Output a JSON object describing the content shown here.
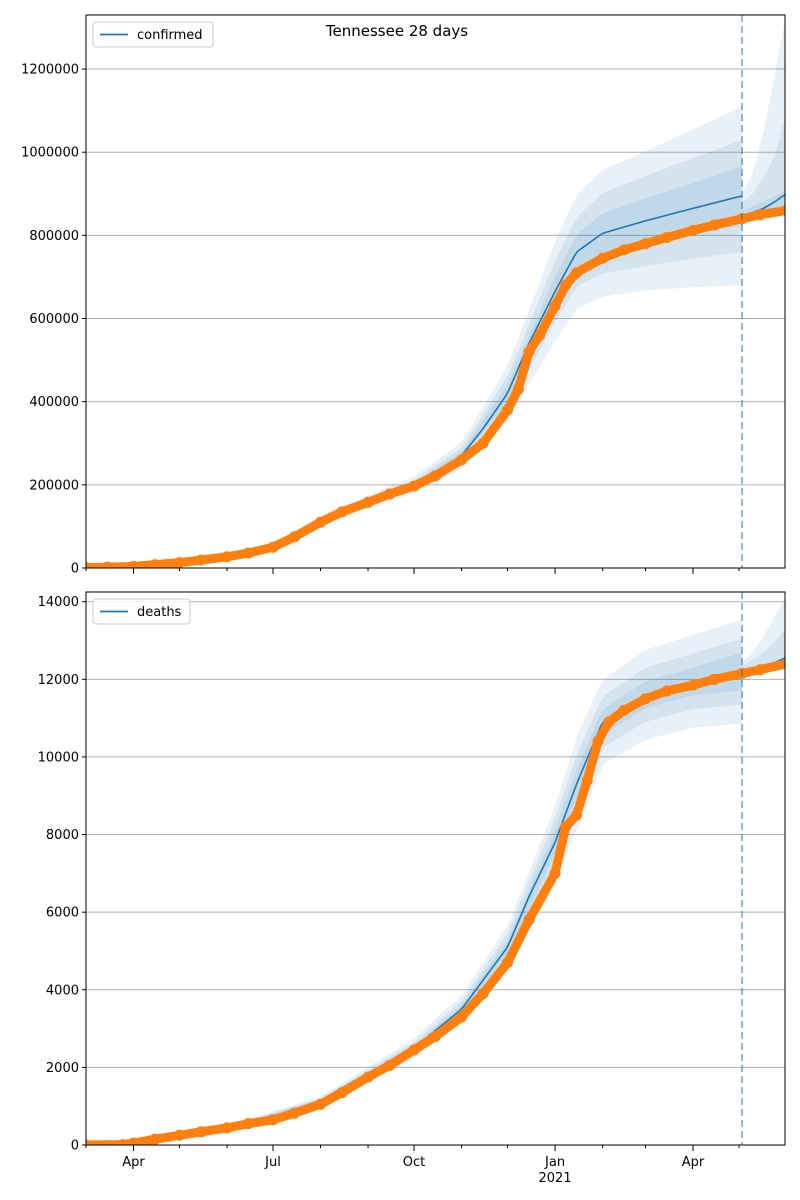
{
  "title": "Tennessee 28 days",
  "colors": {
    "model": "#1f77b4",
    "observed": "#ff7f0e",
    "band": "#1f77b4",
    "grid": "#b0b0b0",
    "forecast_line": "#1f77b4"
  },
  "chart_data": [
    {
      "type": "line",
      "legend": "confirmed",
      "legend_placement": "top-left",
      "grid": "y",
      "x_axis": {
        "type": "date",
        "range": [
          "2020-03-01",
          "2021-05-31"
        ]
      },
      "ylim": [
        0,
        1330000
      ],
      "yticks": [
        0,
        200000,
        400000,
        600000,
        800000,
        1000000,
        1200000
      ],
      "ytick_labels": [
        "0",
        "200000",
        "400000",
        "600000",
        "800000",
        "1000000",
        "1200000"
      ],
      "forecast_start": "2021-05-03",
      "model": {
        "x": [
          "2020-03-01",
          "2020-04-01",
          "2020-05-01",
          "2020-06-01",
          "2020-07-01",
          "2020-07-15",
          "2020-08-01",
          "2020-09-01",
          "2020-10-01",
          "2020-11-01",
          "2020-11-15",
          "2020-12-01",
          "2020-12-15",
          "2021-01-01",
          "2021-01-15",
          "2021-02-01",
          "2021-03-01",
          "2021-04-01",
          "2021-05-03",
          "2021-06-01"
        ],
        "y": [
          1000,
          3000,
          12000,
          28000,
          50000,
          75000,
          115000,
          160000,
          200000,
          270000,
          335000,
          420000,
          540000,
          665000,
          760000,
          805000,
          835000,
          865000,
          895000,
          898000
        ]
      },
      "bands": {
        "x": [
          "2020-03-01",
          "2020-06-01",
          "2020-07-01",
          "2020-08-01",
          "2020-09-01",
          "2020-10-01",
          "2020-11-01",
          "2020-12-01",
          "2021-01-01",
          "2021-01-15",
          "2021-02-01",
          "2021-03-01",
          "2021-04-01",
          "2021-05-03"
        ],
        "center": [
          1000,
          28000,
          50000,
          115000,
          160000,
          200000,
          270000,
          420000,
          665000,
          760000,
          805000,
          835000,
          865000,
          895000
        ],
        "outer": [
          0.08,
          0.1,
          0.1,
          0.1,
          0.1,
          0.1,
          0.12,
          0.16,
          0.18,
          0.18,
          0.19,
          0.2,
          0.22,
          0.24
        ],
        "mid": [
          0.05,
          0.06,
          0.06,
          0.06,
          0.06,
          0.06,
          0.07,
          0.1,
          0.11,
          0.11,
          0.12,
          0.13,
          0.14,
          0.15
        ],
        "inner": [
          0.025,
          0.03,
          0.03,
          0.03,
          0.03,
          0.03,
          0.035,
          0.05,
          0.055,
          0.055,
          0.06,
          0.065,
          0.07,
          0.08
        ]
      },
      "forecast_bands": {
        "x": [
          "2021-05-03",
          "2021-05-10",
          "2021-05-17",
          "2021-05-24",
          "2021-05-31"
        ],
        "lower": [
          840000,
          845000,
          850000,
          855000,
          860000
        ],
        "upper": [
          900000,
          950000,
          1050000,
          1180000,
          1320000
        ],
        "mid_upper": [
          880000,
          900000,
          940000,
          990000,
          1080000
        ],
        "inner_upper": [
          860000,
          870000,
          880000,
          895000,
          905000
        ],
        "center": [
          845000,
          855000,
          865000,
          880000,
          898000
        ]
      },
      "observed": {
        "x": [
          "2020-03-01",
          "2020-03-15",
          "2020-04-01",
          "2020-04-15",
          "2020-05-01",
          "2020-05-15",
          "2020-06-01",
          "2020-06-15",
          "2020-07-01",
          "2020-07-15",
          "2020-08-01",
          "2020-08-15",
          "2020-09-01",
          "2020-09-15",
          "2020-10-01",
          "2020-10-15",
          "2020-11-01",
          "2020-11-15",
          "2020-12-01",
          "2020-12-08",
          "2020-12-15",
          "2020-12-22",
          "2021-01-01",
          "2021-01-08",
          "2021-01-15",
          "2021-02-01",
          "2021-02-15",
          "2021-03-01",
          "2021-03-15",
          "2021-04-01",
          "2021-04-15",
          "2021-05-03",
          "2021-05-15",
          "2021-06-01"
        ],
        "y": [
          1000,
          2000,
          4000,
          8000,
          13000,
          19000,
          27000,
          36000,
          50000,
          75000,
          110000,
          135000,
          158000,
          178000,
          197000,
          222000,
          260000,
          300000,
          380000,
          430000,
          520000,
          560000,
          630000,
          680000,
          710000,
          745000,
          765000,
          780000,
          795000,
          812000,
          825000,
          840000,
          850000,
          860000
        ]
      }
    },
    {
      "type": "line",
      "legend": "deaths",
      "legend_placement": "top-left",
      "grid": "y",
      "x_axis": {
        "type": "date",
        "range": [
          "2020-03-01",
          "2021-05-31"
        ]
      },
      "ylim": [
        0,
        14250
      ],
      "yticks": [
        0,
        2000,
        4000,
        6000,
        8000,
        10000,
        12000,
        14000
      ],
      "ytick_labels": [
        "0",
        "2000",
        "4000",
        "6000",
        "8000",
        "10000",
        "12000",
        "14000"
      ],
      "forecast_start": "2021-05-03",
      "model": {
        "x": [
          "2020-03-01",
          "2020-04-01",
          "2020-05-01",
          "2020-06-01",
          "2020-07-01",
          "2020-08-01",
          "2020-09-01",
          "2020-10-01",
          "2020-11-01",
          "2020-12-01",
          "2020-12-15",
          "2021-01-01",
          "2021-01-15",
          "2021-02-01",
          "2021-03-01",
          "2021-04-01",
          "2021-05-03",
          "2021-06-01"
        ],
        "y": [
          0,
          60,
          250,
          450,
          700,
          1150,
          1850,
          2500,
          3500,
          5100,
          6400,
          7800,
          9300,
          10900,
          11600,
          11950,
          12200,
          12550
        ]
      },
      "bands": {
        "x": [
          "2020-03-01",
          "2020-06-01",
          "2020-08-01",
          "2020-10-01",
          "2020-11-01",
          "2020-12-01",
          "2021-01-01",
          "2021-01-15",
          "2021-02-01",
          "2021-03-01",
          "2021-04-01",
          "2021-05-03"
        ],
        "center": [
          0,
          450,
          1150,
          2500,
          3500,
          5100,
          7800,
          9300,
          10900,
          11600,
          11950,
          12200
        ],
        "outer": [
          0.05,
          0.08,
          0.09,
          0.1,
          0.1,
          0.11,
          0.12,
          0.13,
          0.1,
          0.1,
          0.1,
          0.11
        ],
        "mid": [
          0.03,
          0.05,
          0.05,
          0.06,
          0.06,
          0.07,
          0.08,
          0.08,
          0.06,
          0.06,
          0.06,
          0.07
        ],
        "inner": [
          0.015,
          0.025,
          0.025,
          0.03,
          0.03,
          0.035,
          0.04,
          0.04,
          0.03,
          0.03,
          0.03,
          0.04
        ]
      },
      "forecast_bands": {
        "x": [
          "2021-05-03",
          "2021-05-10",
          "2021-05-17",
          "2021-05-24",
          "2021-05-31"
        ],
        "lower": [
          12150,
          12200,
          12250,
          12300,
          12350
        ],
        "upper": [
          12450,
          12700,
          13100,
          13600,
          14100
        ],
        "mid_upper": [
          12350,
          12500,
          12700,
          12950,
          13300
        ],
        "inner_upper": [
          12250,
          12320,
          12400,
          12480,
          12560
        ],
        "center": [
          12200,
          12250,
          12320,
          12420,
          12550
        ]
      },
      "observed": {
        "x": [
          "2020-03-01",
          "2020-03-25",
          "2020-04-01",
          "2020-04-15",
          "2020-05-01",
          "2020-05-15",
          "2020-06-01",
          "2020-06-15",
          "2020-07-01",
          "2020-07-15",
          "2020-08-01",
          "2020-08-15",
          "2020-09-01",
          "2020-09-15",
          "2020-10-01",
          "2020-10-15",
          "2020-11-01",
          "2020-11-15",
          "2020-12-01",
          "2020-12-15",
          "2021-01-01",
          "2021-01-08",
          "2021-01-15",
          "2021-01-22",
          "2021-01-29",
          "2021-02-05",
          "2021-02-15",
          "2021-03-01",
          "2021-03-15",
          "2021-04-01",
          "2021-04-15",
          "2021-05-03",
          "2021-05-15",
          "2021-06-01"
        ],
        "y": [
          0,
          10,
          50,
          150,
          250,
          340,
          440,
          550,
          650,
          820,
          1050,
          1350,
          1750,
          2050,
          2450,
          2800,
          3300,
          3900,
          4700,
          5800,
          7000,
          8200,
          8500,
          9400,
          10400,
          10900,
          11200,
          11500,
          11700,
          11850,
          12000,
          12150,
          12250,
          12400
        ]
      }
    }
  ],
  "x_ticks": [
    {
      "date": "2020-04-01",
      "label": "Apr",
      "sublabel": ""
    },
    {
      "date": "2020-07-01",
      "label": "Jul",
      "sublabel": ""
    },
    {
      "date": "2020-10-01",
      "label": "Oct",
      "sublabel": ""
    },
    {
      "date": "2021-01-01",
      "label": "Jan",
      "sublabel": "2021"
    },
    {
      "date": "2021-04-01",
      "label": "Apr",
      "sublabel": ""
    }
  ],
  "x_minor_ticks": [
    "2020-03-01",
    "2020-05-01",
    "2020-06-01",
    "2020-08-01",
    "2020-09-01",
    "2020-11-01",
    "2020-12-01",
    "2021-02-01",
    "2021-03-01",
    "2021-05-01"
  ]
}
